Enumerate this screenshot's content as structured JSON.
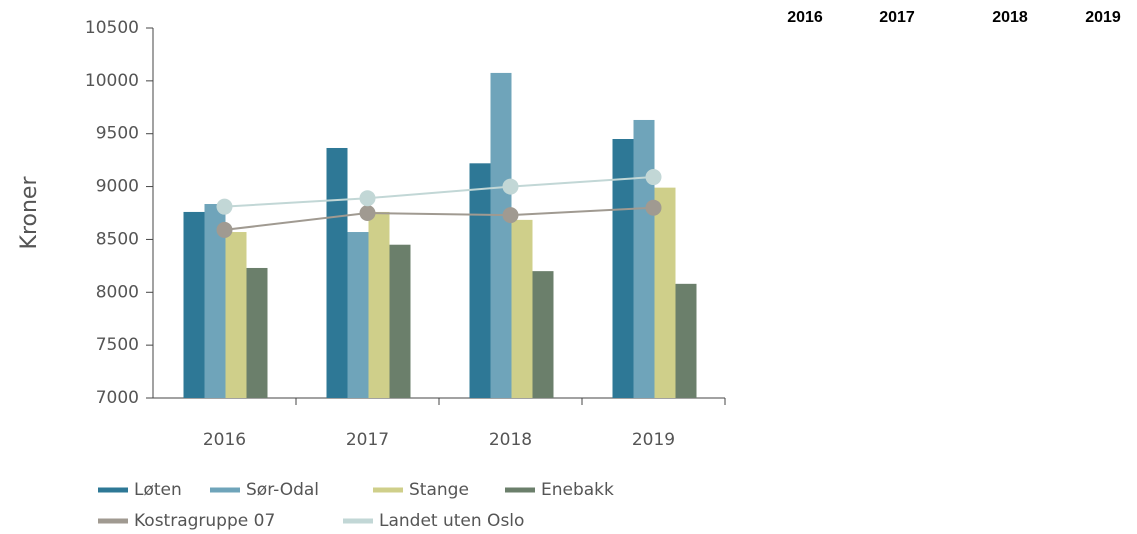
{
  "chart_data": {
    "type": "bar",
    "y_label": "Kroner",
    "categories": [
      "2016",
      "2017",
      "2018",
      "2019"
    ],
    "series": [
      {
        "name": "Løten",
        "color": "#2e7896",
        "values": [
          8760,
          9365,
          9220,
          9450
        ]
      },
      {
        "name": "Sør-Odal",
        "color": "#6fa4ba",
        "values": [
          8835,
          8570,
          10075,
          9630
        ]
      },
      {
        "name": "Stange",
        "color": "#cfcf8a",
        "values": [
          8570,
          8760,
          8685,
          8990
        ]
      },
      {
        "name": "Enebakk",
        "color": "#6b7f6b",
        "values": [
          8230,
          8450,
          8200,
          8080
        ]
      },
      {
        "name": "Kostragruppe 07",
        "color": "#a09a91",
        "type": "line",
        "values": [
          8590,
          8750,
          8730,
          8800
        ]
      },
      {
        "name": "Landet uten Oslo",
        "color": "#c2d7d6",
        "type": "line",
        "values": [
          8810,
          8890,
          9000,
          9090
        ]
      }
    ],
    "ylim": [
      7000,
      10500
    ],
    "yticks": [
      7000,
      7500,
      8000,
      8500,
      9000,
      9500,
      10000,
      10500
    ],
    "legend": "bottom"
  },
  "table_header": [
    "2016",
    "2017",
    "2018",
    "2019"
  ]
}
